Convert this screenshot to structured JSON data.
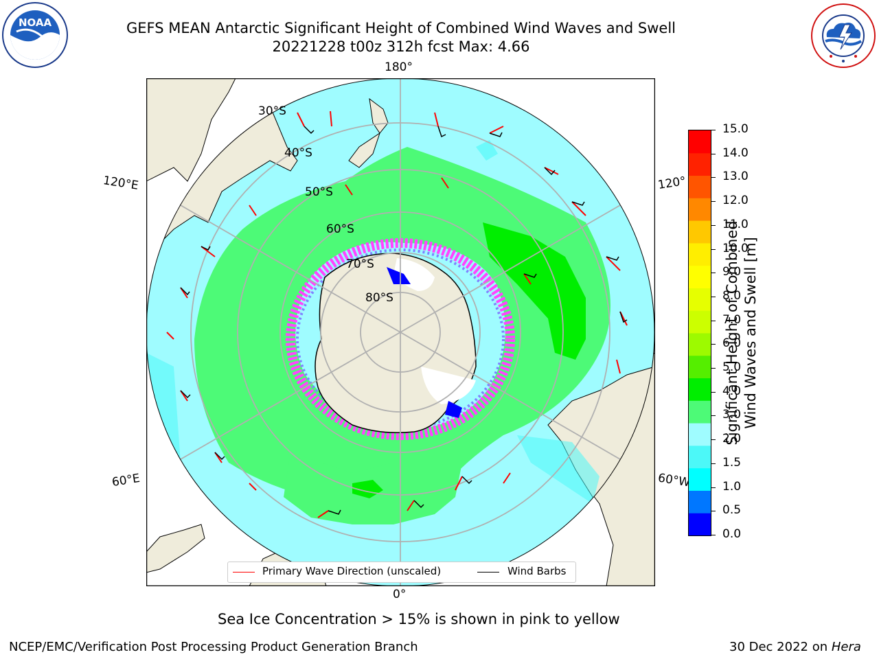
{
  "title": {
    "line1": "GEFS MEAN Antarctic Significant Height of Combined Wind Waves and Swell",
    "line2": "20221228 t00z 312h fcst   Max: 4.66"
  },
  "logos": {
    "left": {
      "name": "noaa-logo",
      "text": "NOAA"
    },
    "right": {
      "name": "national-weather-service-logo",
      "text": "NATIONAL WEATHER SERVICE"
    }
  },
  "map": {
    "projection": "south-polar-stereographic",
    "longitude_labels": {
      "top": "180°",
      "bottom": "0°",
      "upper_left": "120°E",
      "upper_right": "120°",
      "lower_left": "60°E",
      "lower_right": "60°W"
    },
    "latitude_labels": [
      "30°S",
      "40°S",
      "50°S",
      "60°S",
      "70°S",
      "80°S"
    ],
    "colors": {
      "land": "#efecdb",
      "ocean_2_3": "#9ffcff",
      "ocean_3_4": "#4dfa77",
      "ocean_4_5": "#00ee00",
      "ocean_1_5_2": "#4cf8f8",
      "sea_ice": "#ff44ff",
      "grid": "#b0b0b0",
      "arrow": "#ff0000",
      "barb": "#000000"
    }
  },
  "legend": {
    "wave_label": "Primary Wave Direction (unscaled)",
    "wind_label": "Wind Barbs"
  },
  "colorbar": {
    "title_line1": "Significant Height of Combined",
    "title_line2": "Wind Waves and Swell [m]",
    "ticks": [
      "15.0",
      "14.0",
      "13.0",
      "12.0",
      "11.0",
      "10.0",
      "9.0",
      "8.0",
      "7.0",
      "6.0",
      "5.0",
      "4.0",
      "3.0",
      "2.0",
      "1.5",
      "1.0",
      "0.5",
      "0.0"
    ],
    "colors": [
      "#0000ff",
      "#0077ff",
      "#00ffff",
      "#4cf8f8",
      "#9ffcff",
      "#4dfa77",
      "#00ee00",
      "#55ee00",
      "#9dfa00",
      "#ccff00",
      "#e6ff00",
      "#ffff00",
      "#ffee00",
      "#ffc800",
      "#ff8800",
      "#ff5500",
      "#ff2200",
      "#ff0000"
    ]
  },
  "sea_ice_note": "Sea Ice Concentration > 15% is shown in pink to yellow",
  "footer": {
    "left": "NCEP/EMC/Verification Post Processing Product Generation Branch",
    "right_date": "30 Dec 2022 on ",
    "right_machine": "Hera"
  }
}
